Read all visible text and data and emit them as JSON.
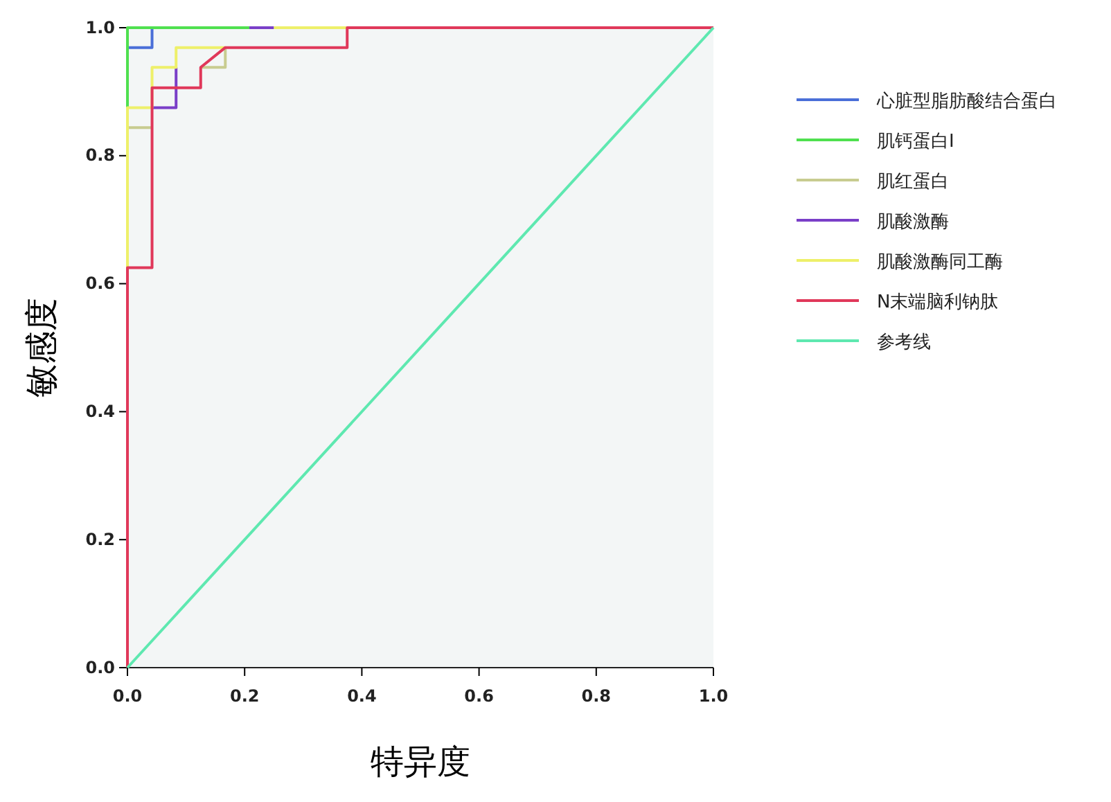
{
  "chart_data": {
    "type": "line",
    "xlabel": "特异度",
    "ylabel": "敏感度",
    "xlim": [
      0,
      1
    ],
    "ylim": [
      0,
      1
    ],
    "xticks": [
      {
        "value": 0,
        "label": "0.0"
      },
      0.2,
      0.4,
      0.6,
      0.8,
      {
        "value": 1,
        "label": "1.0"
      }
    ],
    "yticks": [
      {
        "value": 0,
        "label": "0.0"
      },
      0.2,
      0.4,
      0.6,
      0.8,
      {
        "value": 1,
        "label": "1.0"
      }
    ],
    "grid": false,
    "legend": "right",
    "marker": "none",
    "line_style": "solid",
    "series": [
      {
        "name": "心脏型脂肪酸结合蛋白",
        "color": "#4a6fd8",
        "x": [
          0,
          0.042,
          0.042
        ],
        "values": [
          0.969,
          0.969,
          1
        ]
      },
      {
        "name": "肌钙蛋白I",
        "color": "#4fe04f",
        "x": [
          0,
          0,
          0.208
        ],
        "values": [
          0.875,
          1,
          1
        ]
      },
      {
        "name": "肌红蛋白",
        "color": "#c8cc90",
        "x": [
          0,
          0.042,
          0.083,
          0.125,
          0.167,
          0.167
        ],
        "values": [
          0.844,
          0.844,
          null,
          0.938,
          0.938,
          0.969
        ]
      },
      {
        "name": "肌酸激酶",
        "color": "#7a3fc8",
        "x": [
          0.042,
          0.083,
          0.083,
          0.146,
          0.208,
          0.25
        ],
        "values": [
          0.875,
          0.875,
          0.938,
          null,
          1,
          1
        ]
      },
      {
        "name": "肌酸激酶同工酶",
        "color": "#eef06a",
        "x": [
          0,
          0,
          0.042,
          0.042,
          0.083,
          0.083,
          0.167,
          0.208,
          0.25,
          0.375
        ],
        "values": [
          0.625,
          0.875,
          0.875,
          0.938,
          0.938,
          0.969,
          0.969,
          null,
          1,
          1
        ]
      },
      {
        "name": "N末端脑利钠肽",
        "color": "#e0385a",
        "x": [
          0,
          0,
          0.042,
          0.042,
          0.125,
          0.125,
          0.167,
          0.375,
          0.375,
          1
        ],
        "values": [
          0,
          0.625,
          0.625,
          0.906,
          0.906,
          0.938,
          0.969,
          0.969,
          1,
          1
        ]
      },
      {
        "name": "参考线",
        "color": "#5ee8b0",
        "x": [
          0,
          1
        ],
        "values": [
          0,
          1
        ]
      }
    ]
  }
}
